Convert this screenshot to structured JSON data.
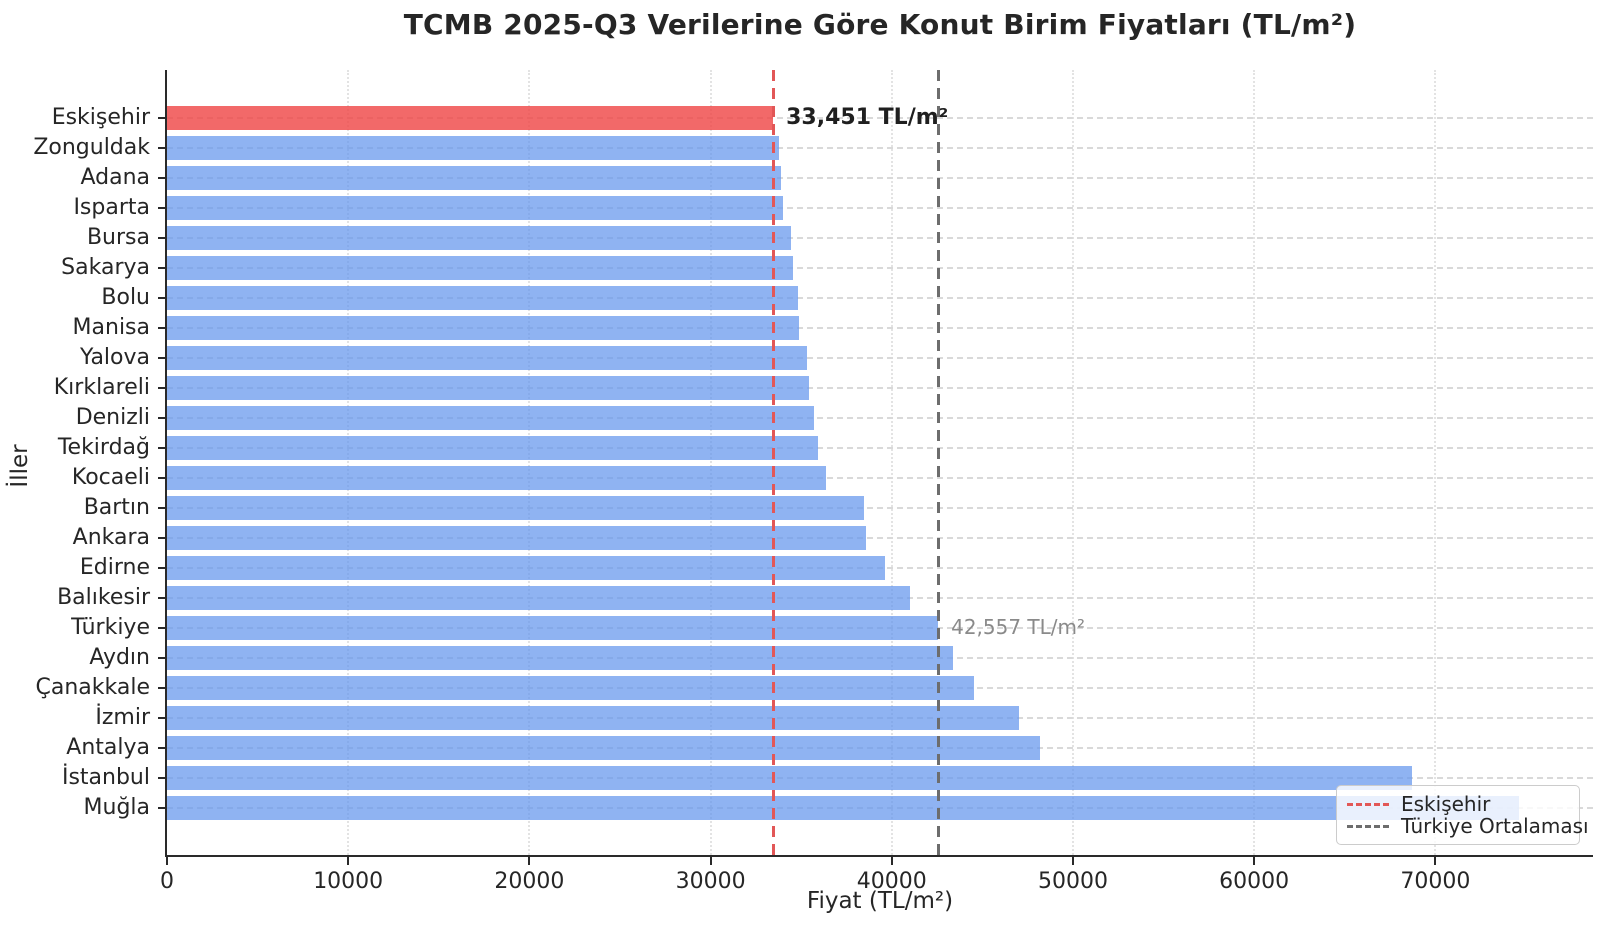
{
  "chart_data": {
    "type": "bar",
    "orientation": "horizontal",
    "title": "TCMB 2025-Q3 Verilerine Göre Konut Birim Fiyatları (TL/m²)",
    "xlabel": "Fiyat (TL/m²)",
    "ylabel": "İller",
    "categories": [
      "Eskişehir",
      "Zonguldak",
      "Adana",
      "Isparta",
      "Bursa",
      "Sakarya",
      "Bolu",
      "Manisa",
      "Yalova",
      "Kırklareli",
      "Denizli",
      "Tekirdağ",
      "Kocaeli",
      "Bartın",
      "Ankara",
      "Edirne",
      "Balıkesir",
      "Türkiye",
      "Aydın",
      "Çanakkale",
      "İzmir",
      "Antalya",
      "İstanbul",
      "Muğla"
    ],
    "values": [
      33451,
      33800,
      33880,
      34020,
      34440,
      34570,
      34810,
      34900,
      35330,
      35420,
      35680,
      35910,
      36370,
      38440,
      38550,
      39650,
      41030,
      42557,
      43400,
      44560,
      47040,
      48150,
      68730,
      74610
    ],
    "highlight_category": "Eskişehir",
    "bar_color": "#6495ED",
    "bar_alpha": 0.72,
    "highlight_color": "#EF4444",
    "highlight_alpha": 0.8,
    "xlim": [
      0,
      78700
    ],
    "xticks": [
      0,
      10000,
      20000,
      30000,
      40000,
      50000,
      60000,
      70000
    ],
    "grid": {
      "horizontal": "dashed",
      "vertical": "dotted",
      "enabled": true
    },
    "reference_lines": [
      {
        "label": "Eskişehir",
        "value": 33451,
        "color": "#E25757",
        "style": "dashed"
      },
      {
        "label": "Türkiye Ortalaması",
        "value": 42557,
        "color": "#6D6D6D",
        "style": "dashed"
      }
    ],
    "annotations": [
      {
        "text": "33,451 TL/m²",
        "category": "Eskişehir",
        "value": 33451,
        "bold": true,
        "color": "#1F1F1F"
      },
      {
        "text": "42,557 TL/m²",
        "category": "Türkiye",
        "value": 42557,
        "bold": false,
        "color": "#8A8A8A"
      }
    ],
    "legend": {
      "position": "lower right",
      "entries": [
        {
          "label": "Eskişehir"
        },
        {
          "label": "Türkiye Ortalaması"
        }
      ]
    }
  }
}
